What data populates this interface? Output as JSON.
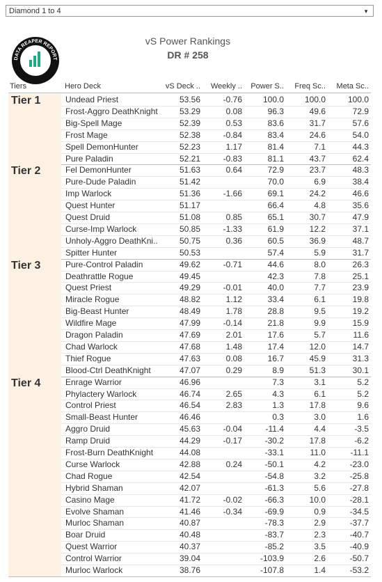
{
  "filter": "Diamond 1 to 4",
  "logo": "DATA REAPER REPORT",
  "title": "vS Power Rankings",
  "subtitle": "DR # 258",
  "columns": [
    "Tiers",
    "Hero Deck",
    "vS Deck ..",
    "Weekly ..",
    "Power S..",
    "Freq Sc..",
    "Meta Sc.."
  ],
  "tiers": [
    {
      "name": "Tier 1",
      "rows": [
        [
          "Undead Priest",
          "53.56",
          "-0.76",
          "100.0",
          "100.0",
          "100.0"
        ],
        [
          "Frost-Aggro DeathKnight",
          "53.29",
          "0.08",
          "96.3",
          "49.6",
          "72.9"
        ],
        [
          "Big-Spell Mage",
          "52.39",
          "0.53",
          "83.6",
          "31.7",
          "57.6"
        ],
        [
          "Frost Mage",
          "52.38",
          "-0.84",
          "83.4",
          "24.6",
          "54.0"
        ],
        [
          "Spell DemonHunter",
          "52.23",
          "1.17",
          "81.4",
          "7.1",
          "44.3"
        ],
        [
          "Pure Paladin",
          "52.21",
          "-0.83",
          "81.1",
          "43.7",
          "62.4"
        ]
      ]
    },
    {
      "name": "Tier 2",
      "rows": [
        [
          "Fel DemonHunter",
          "51.63",
          "0.64",
          "72.9",
          "23.7",
          "48.3"
        ],
        [
          "Pure-Dude Paladin",
          "51.42",
          null,
          "70.0",
          "6.9",
          "38.4"
        ],
        [
          "Imp Warlock",
          "51.36",
          "-1.66",
          "69.1",
          "24.2",
          "46.6"
        ],
        [
          "Quest Hunter",
          "51.17",
          null,
          "66.4",
          "4.8",
          "35.6"
        ],
        [
          "Quest Druid",
          "51.08",
          "0.85",
          "65.1",
          "30.7",
          "47.9"
        ],
        [
          "Curse-Imp Warlock",
          "50.85",
          "-1.33",
          "61.9",
          "12.2",
          "37.1"
        ],
        [
          "Unholy-Aggro DeathKni..",
          "50.75",
          "0.36",
          "60.5",
          "36.9",
          "48.7"
        ],
        [
          "Spitter Hunter",
          "50.53",
          null,
          "57.4",
          "5.9",
          "31.7"
        ]
      ]
    },
    {
      "name": "Tier 3",
      "rows": [
        [
          "Pure-Control Paladin",
          "49.62",
          "-0.71",
          "44.6",
          "8.0",
          "26.3"
        ],
        [
          "Deathrattle Rogue",
          "49.45",
          null,
          "42.3",
          "7.8",
          "25.1"
        ],
        [
          "Quest Priest",
          "49.29",
          "-0.01",
          "40.0",
          "7.7",
          "23.9"
        ],
        [
          "Miracle Rogue",
          "48.82",
          "1.12",
          "33.4",
          "6.1",
          "19.8"
        ],
        [
          "Big-Beast Hunter",
          "48.49",
          "1.78",
          "28.8",
          "9.5",
          "19.2"
        ],
        [
          "Wildfire Mage",
          "47.99",
          "-0.14",
          "21.8",
          "9.9",
          "15.9"
        ],
        [
          "Dragon Paladin",
          "47.69",
          "2.01",
          "17.6",
          "5.7",
          "11.6"
        ],
        [
          "Chad Warlock",
          "47.68",
          "1.48",
          "17.4",
          "12.0",
          "14.7"
        ],
        [
          "Thief Rogue",
          "47.63",
          "0.08",
          "16.7",
          "45.9",
          "31.3"
        ],
        [
          "Blood-Ctrl DeathKnight",
          "47.07",
          "0.29",
          "8.9",
          "51.3",
          "30.1"
        ]
      ]
    },
    {
      "name": "Tier 4",
      "rows": [
        [
          "Enrage Warrior",
          "46.96",
          null,
          "7.3",
          "3.1",
          "5.2"
        ],
        [
          "Phylactery Warlock",
          "46.74",
          "2.65",
          "4.3",
          "6.1",
          "5.2"
        ],
        [
          "Control Priest",
          "46.54",
          "2.83",
          "1.3",
          "17.8",
          "9.6"
        ],
        [
          "Small-Beast Hunter",
          "46.46",
          null,
          "0.3",
          "3.0",
          "1.6"
        ],
        [
          "Aggro Druid",
          "45.63",
          "-0.04",
          "-11.4",
          "4.4",
          "-3.5"
        ],
        [
          "Ramp Druid",
          "44.29",
          "-0.17",
          "-30.2",
          "17.8",
          "-6.2"
        ],
        [
          "Frost-Burn DeathKnight",
          "44.08",
          null,
          "-33.1",
          "11.0",
          "-11.1"
        ],
        [
          "Curse Warlock",
          "42.88",
          "0.24",
          "-50.1",
          "4.2",
          "-23.0"
        ],
        [
          "Chad Rogue",
          "42.54",
          null,
          "-54.8",
          "3.2",
          "-25.8"
        ],
        [
          "Hybrid Shaman",
          "42.07",
          null,
          "-61.3",
          "5.6",
          "-27.8"
        ],
        [
          "Casino Mage",
          "41.72",
          "-0.02",
          "-66.3",
          "10.0",
          "-28.1"
        ],
        [
          "Evolve Shaman",
          "41.46",
          "-0.34",
          "-69.9",
          "0.9",
          "-34.5"
        ],
        [
          "Murloc Shaman",
          "40.87",
          null,
          "-78.3",
          "2.9",
          "-37.7"
        ],
        [
          "Boar Druid",
          "40.48",
          null,
          "-83.7",
          "2.3",
          "-40.7"
        ],
        [
          "Quest Warrior",
          "40.37",
          null,
          "-85.2",
          "3.5",
          "-40.9"
        ],
        [
          "Control Warrior",
          "39.04",
          null,
          "-103.9",
          "2.6",
          "-50.7"
        ],
        [
          "Murloc Warlock",
          "38.76",
          null,
          "-107.8",
          "1.4",
          "-53.2"
        ]
      ]
    }
  ]
}
